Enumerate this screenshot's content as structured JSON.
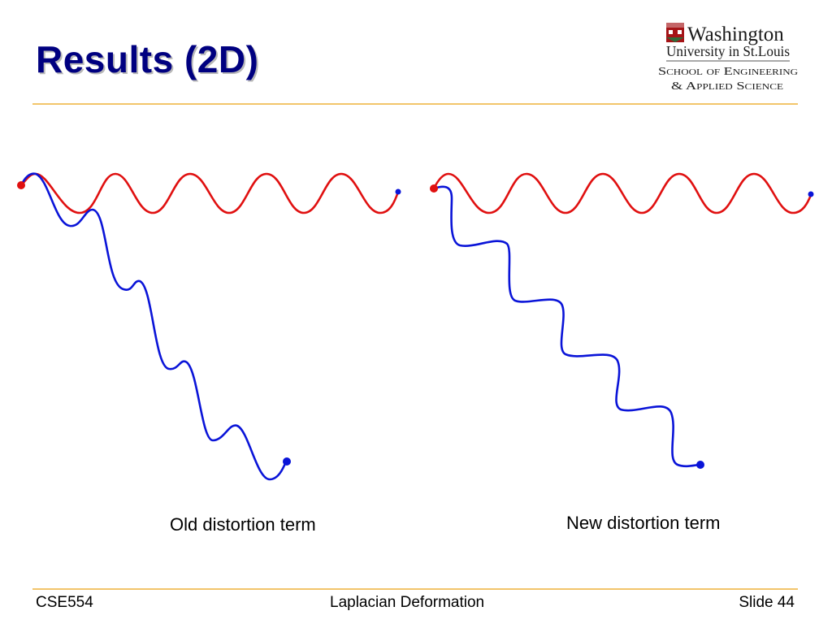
{
  "slide": {
    "title": "Results (2D)"
  },
  "logo": {
    "line1": "Washington",
    "line2": "University in St.Louis",
    "line3": "School of Engineering",
    "line4": "& Applied Science",
    "colors": {
      "text": "#1a1a1a",
      "shield_red": "#a51417",
      "shield_green": "#2f6b3a"
    }
  },
  "figures": {
    "left_caption": "Old distortion term",
    "right_caption": "New distortion term",
    "colors": {
      "original_curve": "#e01010",
      "deformed_curve": "#0a14d8",
      "handle_fixed": "#e01010",
      "handle_moved": "#0a14d8"
    }
  },
  "footer": {
    "course": "CSE554",
    "topic": "Laplacian Deformation",
    "slide_number": "Slide 44"
  },
  "theme": {
    "title_color": "#000080",
    "rule_color": "#f2c56b"
  }
}
